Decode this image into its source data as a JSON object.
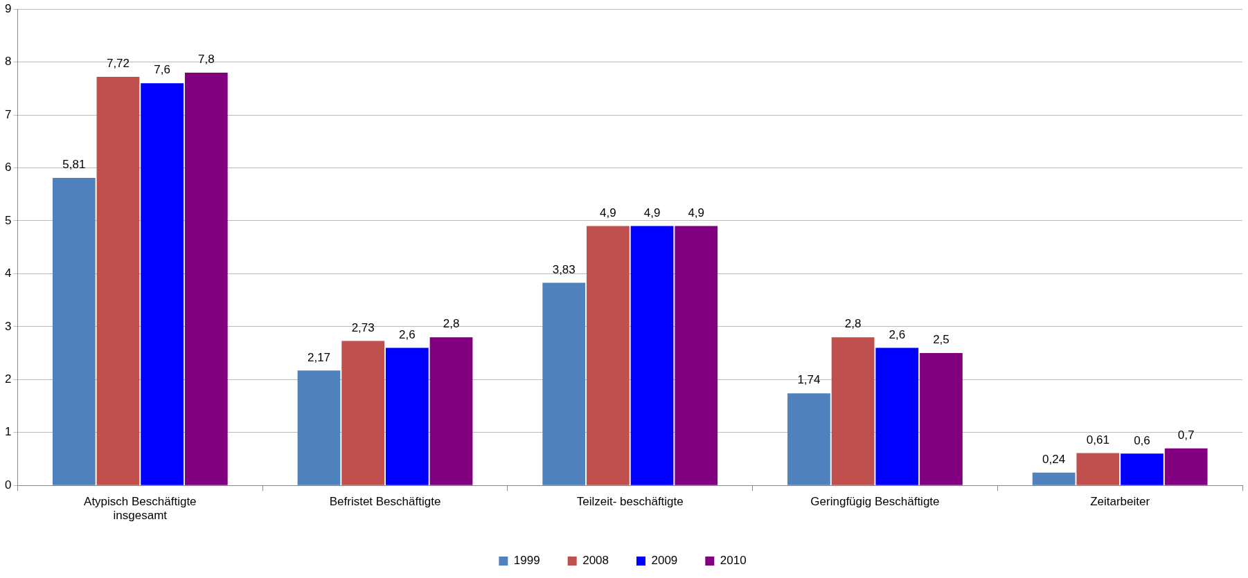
{
  "chart_data": {
    "type": "bar",
    "categories": [
      "Atypisch Beschäftigte insgesamt",
      "Befristet Beschäftigte",
      "Teilzeit- beschäftigte",
      "Geringfügig Beschäftigte",
      "Zeitarbeiter"
    ],
    "series": [
      {
        "name": "1999",
        "color": "#4f81bd",
        "values": [
          5.81,
          2.17,
          3.83,
          1.74,
          0.24
        ],
        "value_labels": [
          "5,81",
          "2,17",
          "3,83",
          "1,74",
          "0,24"
        ]
      },
      {
        "name": "2008",
        "color": "#c0504d",
        "values": [
          7.72,
          2.73,
          4.9,
          2.8,
          0.61
        ],
        "value_labels": [
          "7,72",
          "2,73",
          "4,9",
          "2,8",
          "0,61"
        ]
      },
      {
        "name": "2009",
        "color": "#0000ff",
        "values": [
          7.6,
          2.6,
          4.9,
          2.6,
          0.6
        ],
        "value_labels": [
          "7,6",
          "2,6",
          "4,9",
          "2,6",
          "0,6"
        ]
      },
      {
        "name": "2010",
        "color": "#800080",
        "values": [
          7.8,
          2.8,
          4.9,
          2.5,
          0.7
        ],
        "value_labels": [
          "7,8",
          "2,8",
          "4,9",
          "2,5",
          "0,7"
        ]
      }
    ],
    "ylim": [
      0,
      9
    ],
    "yticks": [
      0,
      1,
      2,
      3,
      4,
      5,
      6,
      7,
      8,
      9
    ],
    "grid": "y",
    "legend": "bottom"
  }
}
